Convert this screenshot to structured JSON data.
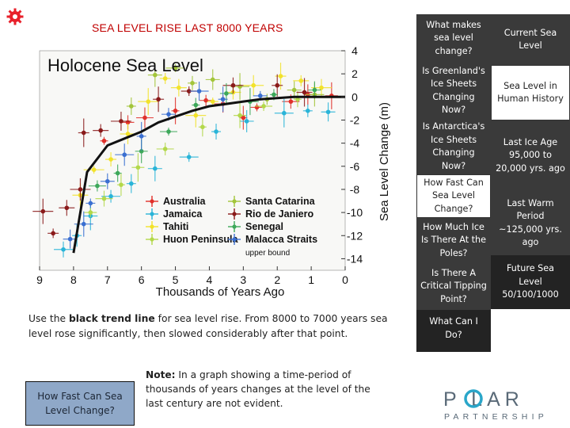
{
  "page": {
    "title": "SEA LEVEL RISE LAST 8000 YEARS",
    "caption": {
      "part1": "Use the ",
      "bold": "black trend line",
      "part2": " for sea level rise. From 8000 to 7000 years sea level rose significantly, then slowed considerably after that point."
    },
    "side_button": "How Fast Can Sea Level Change?",
    "note": {
      "bold": "Note:",
      "text": " In a graph showing a time-period of thousands of years changes at the level of the last century are not evident."
    }
  },
  "nav_left": [
    {
      "label": "What makes sea level change?",
      "style": "dark"
    },
    {
      "label": "Is Greenland's Ice Sheets Changing Now?",
      "style": "dark"
    },
    {
      "label": "Is Antarctica's Ice Sheets Changing Now?",
      "style": "dark"
    },
    {
      "label": "How Fast Can Sea Level Change?",
      "style": "white"
    },
    {
      "label": "How Much Ice Is There At the Poles?",
      "style": "dark"
    },
    {
      "label": "Is There A Critical Tipping Point?",
      "style": "dark"
    },
    {
      "label": "What Can I Do?",
      "style": "darker"
    }
  ],
  "nav_right": [
    {
      "label": "Current Sea Level",
      "style": "dark"
    },
    {
      "label": "Sea Level in Human History",
      "style": "white"
    },
    {
      "label": "Last Ice Age 95,000 to 20,000 yrs. ago",
      "style": "dark"
    },
    {
      "label": "Last Warm Period ~125,000 yrs. ago",
      "style": "dark"
    },
    {
      "label": "Future Sea Level 50/100/1000",
      "style": "darker"
    }
  ],
  "brand": {
    "top": "P  LAR",
    "bottom": "PARTNERSHIP",
    "accent": "#2aa6c9",
    "text": "#5a6a78"
  },
  "icons": {
    "home": "red-gear-icon"
  },
  "chart_data": {
    "type": "scatter",
    "title": "Holocene Sea Level",
    "xlabel": "Thousands of Years Ago",
    "ylabel": "Sea Level Change (m)",
    "xlim": [
      9,
      0
    ],
    "ylim": [
      -15,
      4
    ],
    "x_ticks": [
      "9",
      "8",
      "7",
      "6",
      "5",
      "4",
      "3",
      "2",
      "1",
      "0"
    ],
    "y_ticks": [
      "4",
      "2",
      "0",
      "-2",
      "-4",
      "-6",
      "-8",
      "-10",
      "-12",
      "-14"
    ],
    "legend_placement": "bottom-center",
    "legend": [
      {
        "name": "Australia",
        "color": "#e0302a"
      },
      {
        "name": "Jamaica",
        "color": "#29b4d8"
      },
      {
        "name": "Tahiti",
        "color": "#f2e22a"
      },
      {
        "name": "Huon Peninsula",
        "color": "#b3d84a"
      },
      {
        "name": "Santa Catarina",
        "color": "#a3c53a"
      },
      {
        "name": "Rio de Janiero",
        "color": "#8a1a1a"
      },
      {
        "name": "Senegal",
        "color": "#3da85a"
      },
      {
        "name": "Malacca Straits",
        "color": "#3a6fd1"
      },
      {
        "name": "upper bound",
        "color": "#111111"
      }
    ],
    "trend_line": {
      "name": "trend",
      "x": [
        8.0,
        7.6,
        7.0,
        6.5,
        6.0,
        5.5,
        5.0,
        4.5,
        4.0,
        3.5,
        3.0,
        2.5,
        2.0,
        1.5,
        1.0,
        0.5,
        0.0
      ],
      "y": [
        -13.5,
        -6.5,
        -4.2,
        -3.6,
        -3.0,
        -2.2,
        -1.7,
        -1.2,
        -0.8,
        -0.6,
        -0.4,
        -0.2,
        -0.1,
        0.0,
        0.0,
        0.0,
        0.0
      ]
    },
    "series": [
      {
        "name": "Australia",
        "points": [
          [
            7.1,
            -3.8
          ],
          [
            6.4,
            -2.2
          ],
          [
            5.9,
            -1.8
          ],
          [
            5.0,
            -1.2
          ],
          [
            4.1,
            -0.3
          ],
          [
            3.6,
            -0.6
          ],
          [
            3.0,
            -1.8
          ],
          [
            2.6,
            -0.9
          ],
          [
            1.6,
            -0.4
          ],
          [
            1.1,
            0.2
          ],
          [
            0.4,
            0.1
          ]
        ]
      },
      {
        "name": "Jamaica",
        "points": [
          [
            8.3,
            -13.2
          ],
          [
            7.9,
            -12.0
          ],
          [
            7.5,
            -10.3
          ],
          [
            6.9,
            -8.6
          ],
          [
            6.3,
            -7.5
          ],
          [
            5.6,
            -6.2
          ],
          [
            4.6,
            -5.2
          ],
          [
            3.8,
            -3.0
          ],
          [
            2.9,
            -2.1
          ],
          [
            1.8,
            -1.4
          ],
          [
            1.1,
            -1.2
          ],
          [
            0.5,
            -1.3
          ]
        ]
      },
      {
        "name": "Tahiti",
        "points": [
          [
            7.8,
            -8.5
          ],
          [
            7.4,
            -6.3
          ],
          [
            6.9,
            -5.4
          ],
          [
            6.4,
            -3.2
          ],
          [
            5.8,
            -0.4
          ],
          [
            5.3,
            1.6
          ],
          [
            4.9,
            0.8
          ],
          [
            4.4,
            -1.6
          ],
          [
            3.9,
            -0.4
          ],
          [
            3.3,
            0.4
          ],
          [
            2.7,
            1.0
          ],
          [
            1.9,
            1.8
          ],
          [
            1.3,
            1.4
          ],
          [
            0.7,
            0.8
          ]
        ]
      },
      {
        "name": "Huon Peninsula",
        "points": [
          [
            7.5,
            -10.0
          ],
          [
            7.1,
            -8.8
          ],
          [
            6.6,
            -7.6
          ],
          [
            6.1,
            -6.1
          ],
          [
            5.3,
            -4.5
          ],
          [
            4.2,
            -2.6
          ],
          [
            3.1,
            -1.6
          ],
          [
            2.4,
            -0.8
          ],
          [
            1.4,
            -0.2
          ]
        ]
      },
      {
        "name": "Santa Catarina",
        "points": [
          [
            6.3,
            -0.8
          ],
          [
            5.6,
            1.9
          ],
          [
            5.0,
            2.5
          ],
          [
            4.5,
            1.2
          ],
          [
            3.9,
            1.5
          ],
          [
            3.1,
            0.9
          ],
          [
            2.3,
            -0.2
          ],
          [
            1.5,
            0.6
          ],
          [
            0.9,
            0.2
          ]
        ]
      },
      {
        "name": "Rio de Janiero",
        "points": [
          [
            8.9,
            -9.9
          ],
          [
            8.6,
            -11.8
          ],
          [
            8.2,
            -9.6
          ],
          [
            7.8,
            -8.0
          ],
          [
            7.7,
            -3.1
          ],
          [
            7.2,
            -2.9
          ],
          [
            6.6,
            -2.1
          ],
          [
            5.5,
            -0.2
          ],
          [
            4.6,
            0.5
          ],
          [
            3.3,
            1.0
          ],
          [
            2.0,
            1.0
          ],
          [
            1.2,
            0.4
          ]
        ]
      },
      {
        "name": "Senegal",
        "points": [
          [
            7.3,
            -7.7
          ],
          [
            6.7,
            -6.6
          ],
          [
            6.0,
            -4.7
          ],
          [
            5.2,
            -3.0
          ],
          [
            4.4,
            -0.7
          ],
          [
            3.5,
            0.3
          ],
          [
            2.8,
            -0.4
          ],
          [
            2.1,
            0.2
          ],
          [
            0.9,
            0.6
          ]
        ]
      },
      {
        "name": "Malacca Straits",
        "points": [
          [
            8.1,
            -12.3
          ],
          [
            7.7,
            -11.0
          ],
          [
            7.5,
            -9.2
          ],
          [
            7.0,
            -7.3
          ],
          [
            6.5,
            -5.0
          ],
          [
            6.0,
            -3.4
          ],
          [
            5.2,
            -1.5
          ],
          [
            4.3,
            0.5
          ],
          [
            3.6,
            -0.2
          ],
          [
            2.5,
            0.1
          ]
        ]
      }
    ]
  }
}
